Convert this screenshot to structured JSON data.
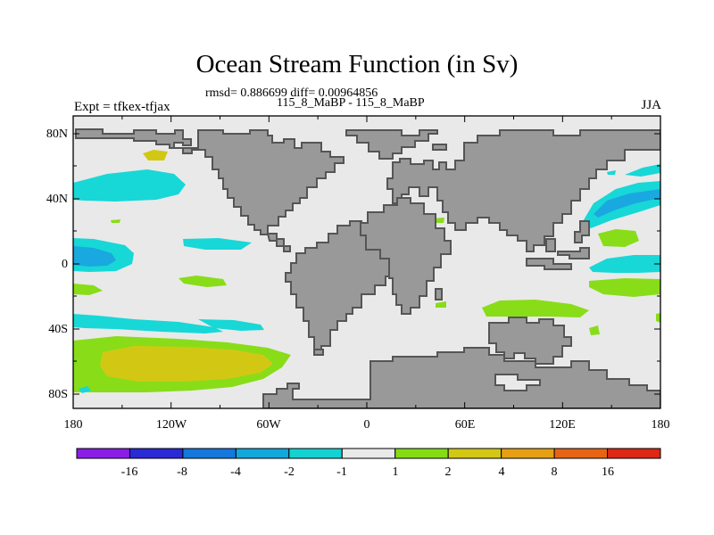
{
  "title": "Ocean Stream Function (in Sv)",
  "subtitle_stats": "rmsd= 0.886699 diff= 0.00964856",
  "subtitle_runs": "115_8_MaBP - 115_8_MaBP",
  "left_string": "Expt = tfkex-tfjax",
  "right_string": "JJA",
  "lon_ticks": [
    "180",
    "120W",
    "60W",
    "0",
    "60E",
    "120E",
    "180"
  ],
  "lat_ticks": [
    "80N",
    "40N",
    "0",
    "40S",
    "80S"
  ],
  "colorbar": {
    "labels": [
      "-16",
      "-8",
      "-4",
      "-2",
      "-1",
      "1",
      "2",
      "4",
      "8",
      "16"
    ],
    "colors": [
      "#8a1ee6",
      "#2a2ad6",
      "#1478dc",
      "#11a8dc",
      "#14d2d2",
      "#e9e9e9",
      "#86dc14",
      "#d2c814",
      "#e6a014",
      "#e66414",
      "#dc2814"
    ]
  },
  "colors": {
    "land": "#999999",
    "land_edge": "#555555",
    "ocean": "#e9e9e9",
    "cyan": "#18d7d7",
    "blue_light": "#1aa8e0",
    "green": "#88dd18",
    "yellow": "#d2c814",
    "orange": "#e6a014"
  }
}
